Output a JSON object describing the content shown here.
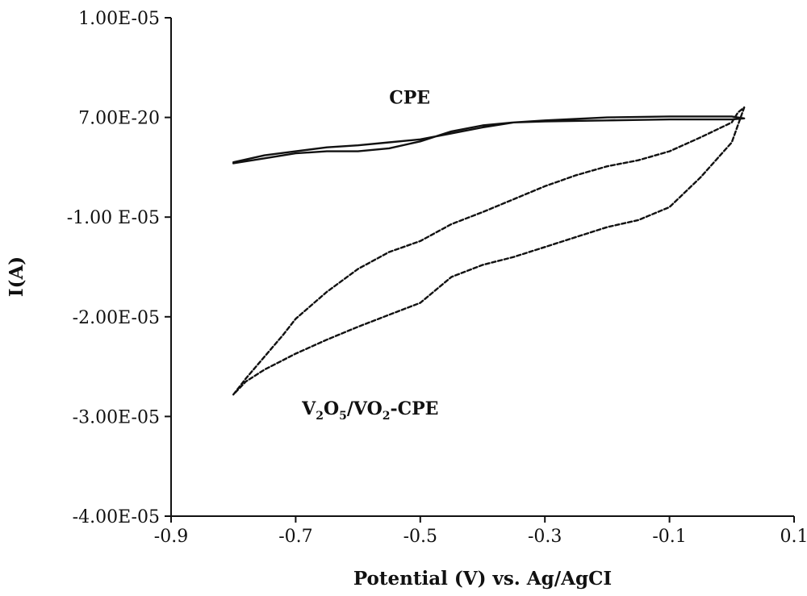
{
  "chart_data": {
    "type": "line",
    "title": "",
    "xlabel": "Potential (V) vs. Ag/AgCI",
    "ylabel": "I(A)",
    "xlim": [
      -0.9,
      0.1
    ],
    "ylim": [
      -4e-05,
      1e-05
    ],
    "x_ticks": [
      -0.9,
      -0.7,
      -0.5,
      -0.3,
      -0.1,
      0.1
    ],
    "x_tick_labels": [
      "-0.9",
      "-0.7",
      "-0.5",
      "-0.3",
      "-0.1",
      "0.1"
    ],
    "y_ticks": [
      1e-05,
      0,
      -1e-05,
      -2e-05,
      -3e-05,
      -4e-05
    ],
    "y_tick_labels": [
      "1.00E-05",
      "7.00E-20",
      "-1.00 E-05",
      "-2.00E-05",
      "-3.00E-05",
      "-4.00E-05"
    ],
    "grid": false,
    "series": [
      {
        "name": "CPE",
        "style": "solid",
        "color": "#111111",
        "x": [
          -0.8,
          -0.75,
          -0.7,
          -0.65,
          -0.6,
          -0.55,
          -0.5,
          -0.45,
          -0.4,
          -0.35,
          -0.3,
          -0.2,
          -0.1,
          0.0,
          0.02,
          0.0,
          -0.1,
          -0.2,
          -0.3,
          -0.35,
          -0.4,
          -0.45,
          -0.5,
          -0.55,
          -0.6,
          -0.65,
          -0.7,
          -0.75,
          -0.8
        ],
        "y": [
          -4.6e-06,
          -4.1e-06,
          -3.6e-06,
          -3.4e-06,
          -3.4e-06,
          -3.1e-06,
          -2.4e-06,
          -1.4e-06,
          -8e-07,
          -5e-07,
          -4e-07,
          -3e-07,
          -2e-07,
          -2e-07,
          -1e-07,
          1e-07,
          1e-07,
          0.0,
          -3e-07,
          -5e-07,
          -1e-06,
          -1.6e-06,
          -2.2e-06,
          -2.5e-06,
          -2.8e-06,
          -3e-06,
          -3.4e-06,
          -3.8e-06,
          -4.5e-06
        ]
      },
      {
        "name": "V2O5/VO2-CPE",
        "style": "dashed",
        "color": "#111111",
        "x": [
          -0.8,
          -0.78,
          -0.75,
          -0.72,
          -0.7,
          -0.65,
          -0.6,
          -0.55,
          -0.5,
          -0.45,
          -0.4,
          -0.35,
          -0.3,
          -0.25,
          -0.2,
          -0.15,
          -0.1,
          -0.05,
          0.0,
          0.01,
          0.02,
          0.0,
          -0.05,
          -0.1,
          -0.15,
          -0.2,
          -0.25,
          -0.3,
          -0.35,
          -0.4,
          -0.45,
          -0.5,
          -0.55,
          -0.6,
          -0.65,
          -0.7,
          -0.75,
          -0.78,
          -0.8
        ],
        "y": [
          -2.78e-05,
          -2.62e-05,
          -2.4e-05,
          -2.18e-05,
          -2.02e-05,
          -1.75e-05,
          -1.52e-05,
          -1.35e-05,
          -1.24e-05,
          -1.07e-05,
          -9.5e-06,
          -8.2e-06,
          -6.9e-06,
          -5.8e-06,
          -4.9e-06,
          -4.3e-06,
          -3.4e-06,
          -2e-06,
          -5e-07,
          5e-07,
          1e-06,
          -2.5e-06,
          -6e-06,
          -9e-06,
          -1.03e-05,
          -1.1e-05,
          -1.2e-05,
          -1.3e-05,
          -1.4e-05,
          -1.48e-05,
          -1.6e-05,
          -1.86e-05,
          -1.98e-05,
          -2.1e-05,
          -2.23e-05,
          -2.37e-05,
          -2.53e-05,
          -2.65e-05,
          -2.78e-05
        ]
      }
    ],
    "annotations": [
      {
        "series": "CPE",
        "text": "CPE",
        "x": -0.55,
        "y": 1.4e-06
      },
      {
        "series": "V2O5/VO2-CPE",
        "text": "V2O5/VO2-CPE",
        "x": -0.69,
        "y": -2.98e-05
      }
    ]
  }
}
